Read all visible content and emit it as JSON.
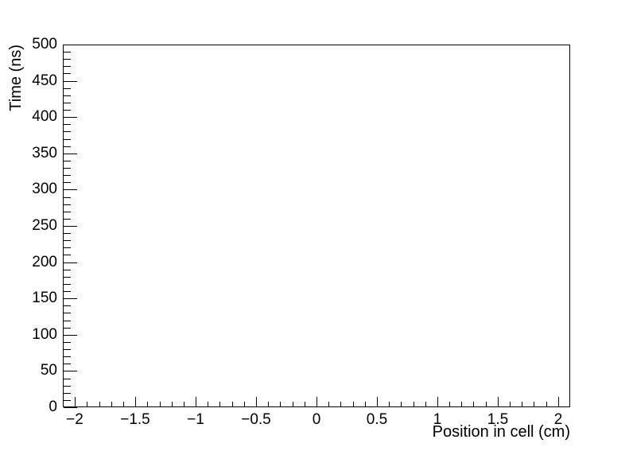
{
  "chart_data": {
    "type": "scatter",
    "title": "",
    "xlabel": "Position in cell (cm)",
    "ylabel": "Time (ns)",
    "xlim": [
      -2.1,
      2.1
    ],
    "ylim": [
      0,
      500
    ],
    "grid": false,
    "legend": "none",
    "background_color": "#ffffff",
    "axis_color": "#000000",
    "series": [],
    "x_axis": {
      "title": "Position in cell (cm)",
      "major_tick_values": [
        -2,
        -1.5,
        -1,
        -0.5,
        0,
        0.5,
        1,
        1.5,
        2
      ],
      "tick_labels": [
        "−2",
        "−1.5",
        "−1",
        "−0.5",
        "0",
        "0.5",
        "1",
        "1.5",
        "2"
      ],
      "major_step": 0.5,
      "minor_step": 0.1,
      "ticks_inward": true
    },
    "y_axis": {
      "title": "Time (ns)",
      "major_tick_values": [
        0,
        50,
        100,
        150,
        200,
        250,
        300,
        350,
        400,
        450,
        500
      ],
      "tick_labels": [
        "0",
        "50",
        "100",
        "150",
        "200",
        "250",
        "300",
        "350",
        "400",
        "450",
        "500"
      ],
      "major_step": 50,
      "minor_step": 10,
      "ticks_inward": true
    }
  }
}
